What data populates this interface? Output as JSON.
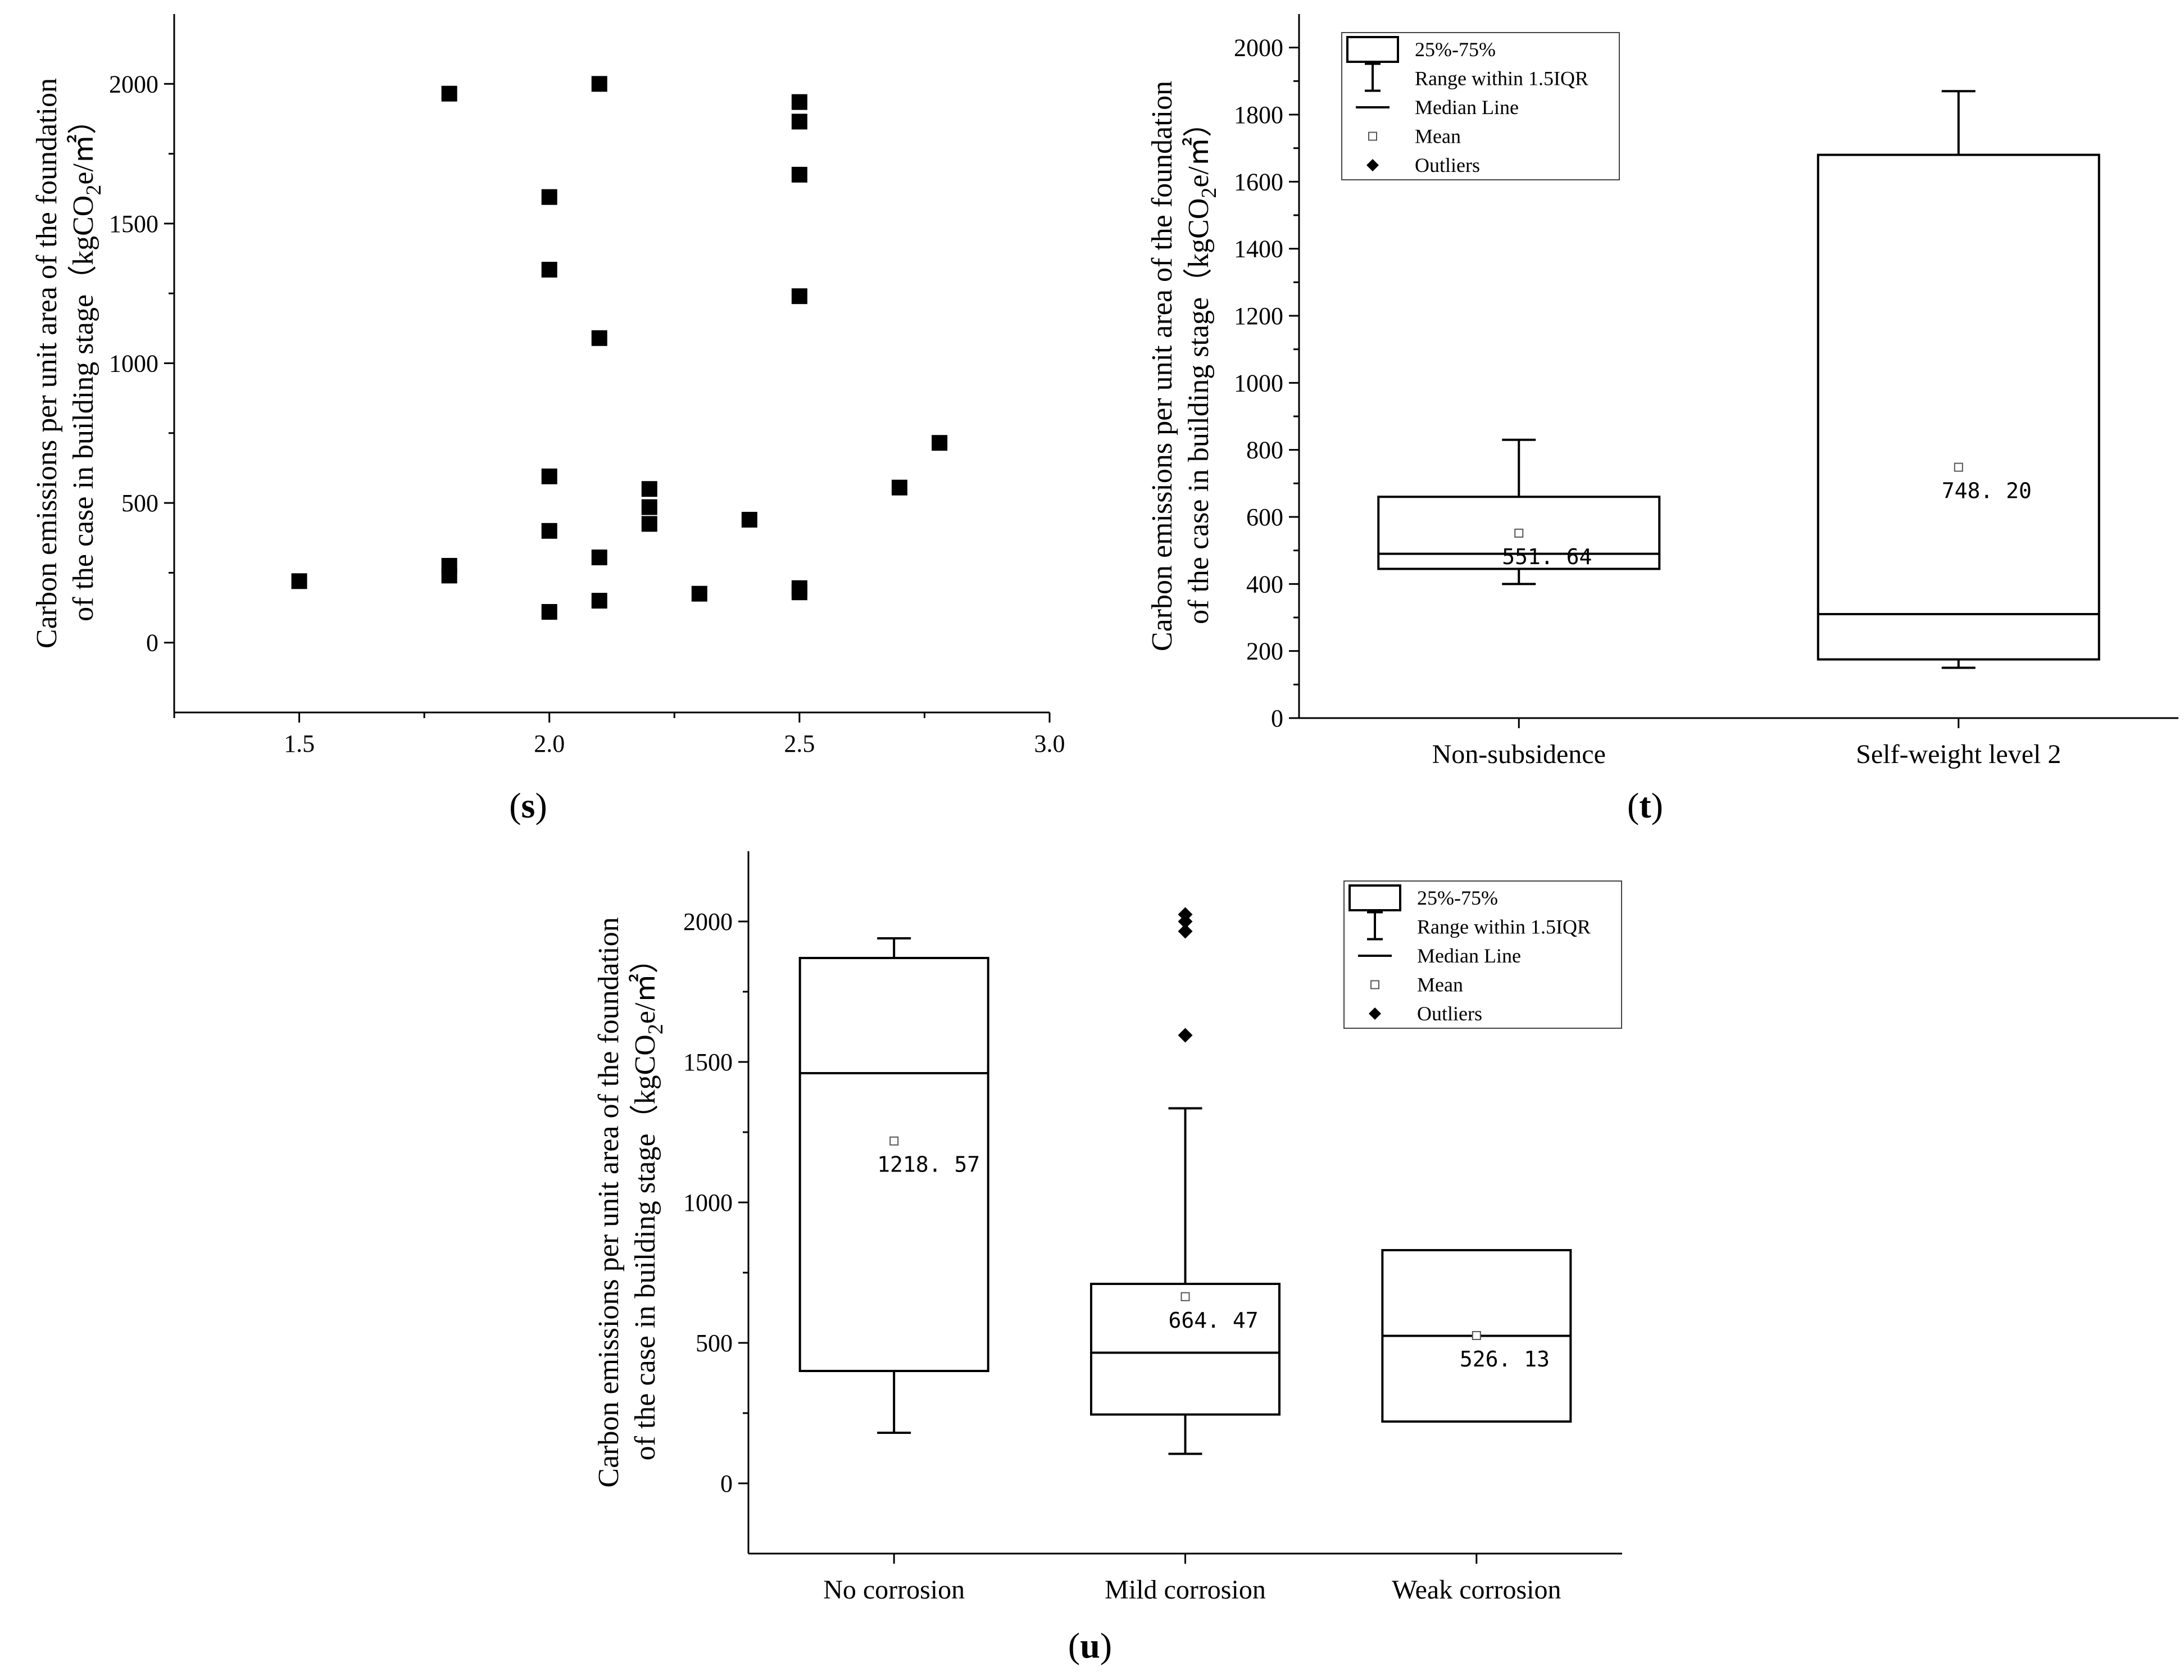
{
  "figure": {
    "ylabel_line1": "Carbon emissions per unit area of the foundation",
    "ylabel_line2_prefix": "of the case in building stage（kgCO",
    "ylabel_sub": "2",
    "ylabel_line2_suffix": "e/㎡）"
  },
  "legend": {
    "items": [
      "25%-75%",
      "Range within 1.5IQR",
      "Median Line",
      "Mean",
      "Outliers"
    ]
  },
  "chart_data": [
    {
      "id": "s",
      "panel_label": "(s)",
      "type": "scatter",
      "xlim": [
        1.25,
        3.0
      ],
      "ylim": [
        -250,
        2250
      ],
      "xticks": [
        1.5,
        2.0,
        2.5,
        3.0
      ],
      "xtick_labels": [
        "1.5",
        "2.0",
        "2.5",
        "3.0"
      ],
      "yticks": [
        0,
        500,
        1000,
        1500,
        2000
      ],
      "ytick_labels": [
        "0",
        "500",
        "1000",
        "1500",
        "2000"
      ],
      "points": [
        [
          1.5,
          220
        ],
        [
          1.8,
          1965
        ],
        [
          1.8,
          275
        ],
        [
          1.8,
          240
        ],
        [
          2.0,
          1595
        ],
        [
          2.0,
          1335
        ],
        [
          2.0,
          595
        ],
        [
          2.0,
          400
        ],
        [
          2.0,
          110
        ],
        [
          2.1,
          2000
        ],
        [
          2.1,
          1090
        ],
        [
          2.1,
          305
        ],
        [
          2.1,
          150
        ],
        [
          2.2,
          550
        ],
        [
          2.2,
          485
        ],
        [
          2.2,
          425
        ],
        [
          2.3,
          175
        ],
        [
          2.4,
          440
        ],
        [
          2.5,
          1935
        ],
        [
          2.5,
          1865
        ],
        [
          2.5,
          1675
        ],
        [
          2.5,
          1240
        ],
        [
          2.5,
          195
        ],
        [
          2.5,
          180
        ],
        [
          2.7,
          555
        ],
        [
          2.78,
          715
        ]
      ]
    },
    {
      "id": "t",
      "panel_label": "(t)",
      "type": "box",
      "ylim": [
        0,
        2100
      ],
      "yticks": [
        0,
        200,
        400,
        600,
        800,
        1000,
        1200,
        1400,
        1600,
        1800,
        2000
      ],
      "ytick_labels": [
        "0",
        "200",
        "400",
        "600",
        "800",
        "1000",
        "1200",
        "1400",
        "1600",
        "1800",
        "2000"
      ],
      "categories": [
        "Non-subsidence",
        "Self-weight level 2"
      ],
      "boxes": [
        {
          "whisker_low": 400,
          "q1": 445,
          "median": 490,
          "q3": 660,
          "whisker_high": 830,
          "mean": 551.64,
          "mean_label": "551. 64",
          "outliers": []
        },
        {
          "whisker_low": 150,
          "q1": 175,
          "median": 310,
          "q3": 1680,
          "whisker_high": 1870,
          "mean": 748.2,
          "mean_label": "748. 20",
          "outliers": []
        }
      ]
    },
    {
      "id": "u",
      "panel_label": "(u)",
      "type": "box",
      "ylim": [
        -250,
        2250
      ],
      "yticks": [
        0,
        500,
        1000,
        1500,
        2000
      ],
      "ytick_labels": [
        "0",
        "500",
        "1000",
        "1500",
        "2000"
      ],
      "categories": [
        "No corrosion",
        "Mild corrosion",
        "Weak corrosion"
      ],
      "boxes": [
        {
          "whisker_low": 180,
          "q1": 400,
          "median": 1460,
          "q3": 1870,
          "whisker_high": 1940,
          "mean": 1218.57,
          "mean_label": "1218. 57",
          "outliers": []
        },
        {
          "whisker_low": 105,
          "q1": 245,
          "median": 465,
          "q3": 710,
          "whisker_high": 1335,
          "mean": 664.47,
          "mean_label": "664. 47",
          "outliers": [
            2025,
            2000,
            1965,
            1595
          ]
        },
        {
          "whisker_low": 220,
          "q1": 220,
          "median": 525,
          "q3": 830,
          "whisker_high": 830,
          "mean": 526.13,
          "mean_label": "526. 13",
          "outliers": []
        }
      ]
    }
  ]
}
